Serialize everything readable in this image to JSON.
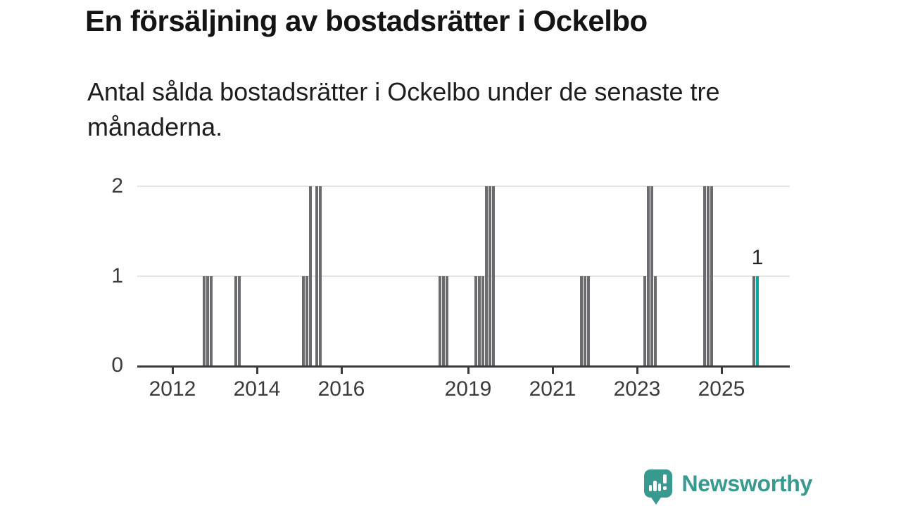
{
  "title": "En försäljning av bostadsrätter i Ockelbo",
  "subtitle_line1": "Antal sålda bostadsrätter i Ockelbo under de senaste tre",
  "subtitle_line2": "månaderna.",
  "branding": {
    "name": "Newsworthy",
    "icon": "newsworthy-chart-bubble-icon",
    "color": "#38998f"
  },
  "colors": {
    "bar": "#6b6b6f",
    "highlight": "#0aa6a4",
    "axis": "#3a3a3a",
    "grid": "#e3e3e3",
    "title_text": "#141414",
    "body_text": "#1e1e1e"
  },
  "chart_data": {
    "type": "bar",
    "title": "En försäljning av bostadsrätter i Ockelbo",
    "subtitle": "Antal sålda bostadsrätter i Ockelbo under de senaste tre månaderna.",
    "xlabel": "",
    "ylabel": "",
    "ylim": [
      0,
      2
    ],
    "y_ticks": [
      0,
      1,
      2
    ],
    "x_ticks": [
      2012,
      2014,
      2016,
      2019,
      2021,
      2023,
      2025
    ],
    "x_range_years": [
      2011.17,
      2026.62
    ],
    "grid": "horizontal",
    "legend": "none",
    "highlight_label": "1",
    "bars": [
      {
        "period": "2012-10",
        "t": 2012.75,
        "value": 1
      },
      {
        "period": "2012-11",
        "t": 2012.833,
        "value": 1
      },
      {
        "period": "2012-12",
        "t": 2012.917,
        "value": 1
      },
      {
        "period": "2013-07",
        "t": 2013.5,
        "value": 1
      },
      {
        "period": "2013-08",
        "t": 2013.583,
        "value": 1
      },
      {
        "period": "2015-02",
        "t": 2015.1,
        "value": 1
      },
      {
        "period": "2015-03",
        "t": 2015.183,
        "value": 1
      },
      {
        "period": "2015-04",
        "t": 2015.267,
        "value": 2
      },
      {
        "period": "2015-06",
        "t": 2015.417,
        "value": 2
      },
      {
        "period": "2015-07",
        "t": 2015.5,
        "value": 2
      },
      {
        "period": "2018-05",
        "t": 2018.333,
        "value": 1
      },
      {
        "period": "2018-06",
        "t": 2018.417,
        "value": 1
      },
      {
        "period": "2018-07",
        "t": 2018.5,
        "value": 1
      },
      {
        "period": "2019-03",
        "t": 2019.183,
        "value": 1
      },
      {
        "period": "2019-04",
        "t": 2019.267,
        "value": 1
      },
      {
        "period": "2019-05",
        "t": 2019.35,
        "value": 1
      },
      {
        "period": "2019-06",
        "t": 2019.433,
        "value": 2
      },
      {
        "period": "2019-07",
        "t": 2019.517,
        "value": 2
      },
      {
        "period": "2019-08",
        "t": 2019.6,
        "value": 2
      },
      {
        "period": "2021-09",
        "t": 2021.683,
        "value": 1
      },
      {
        "period": "2021-10",
        "t": 2021.767,
        "value": 1
      },
      {
        "period": "2021-11",
        "t": 2021.85,
        "value": 1
      },
      {
        "period": "2023-03",
        "t": 2023.183,
        "value": 1
      },
      {
        "period": "2023-04",
        "t": 2023.267,
        "value": 2
      },
      {
        "period": "2023-05",
        "t": 2023.35,
        "value": 2
      },
      {
        "period": "2023-06",
        "t": 2023.433,
        "value": 1
      },
      {
        "period": "2024-08",
        "t": 2024.6,
        "value": 2
      },
      {
        "period": "2024-09",
        "t": 2024.683,
        "value": 2
      },
      {
        "period": "2024-10",
        "t": 2024.767,
        "value": 2
      },
      {
        "period": "2025-10",
        "t": 2025.767,
        "value": 1
      },
      {
        "period": "2025-11",
        "t": 2025.85,
        "value": 1,
        "highlight": true,
        "label": "1"
      }
    ]
  }
}
